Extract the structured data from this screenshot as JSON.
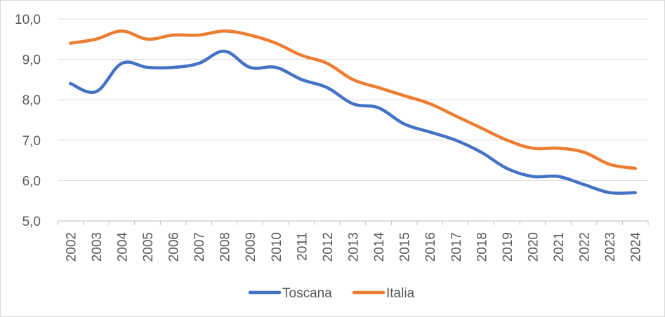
{
  "chart_data": {
    "type": "line",
    "title": "",
    "xlabel": "",
    "ylabel": "",
    "categories": [
      "2002",
      "2003",
      "2004",
      "2005",
      "2006",
      "2007",
      "2008",
      "2009",
      "2010",
      "2011",
      "2012",
      "2013",
      "2014",
      "2015",
      "2016",
      "2017",
      "2018",
      "2019",
      "2020",
      "2021",
      "2022",
      "2023",
      "2024"
    ],
    "y_ticks": [
      "5,0",
      "6,0",
      "7,0",
      "8,0",
      "9,0",
      "10,0"
    ],
    "ylim": [
      5,
      10
    ],
    "grid": "horizontal",
    "legend_position": "bottom",
    "series": [
      {
        "name": "Toscana",
        "color": "#4472c4",
        "values": [
          8.4,
          8.2,
          8.9,
          8.8,
          8.8,
          8.9,
          9.2,
          8.8,
          8.8,
          8.5,
          8.3,
          7.9,
          7.8,
          7.4,
          7.2,
          7.0,
          6.7,
          6.3,
          6.1,
          6.1,
          5.9,
          5.7,
          5.7
        ]
      },
      {
        "name": "Italia",
        "color": "#ed7d31",
        "values": [
          9.4,
          9.5,
          9.7,
          9.5,
          9.6,
          9.6,
          9.7,
          9.6,
          9.4,
          9.1,
          8.9,
          8.5,
          8.3,
          8.1,
          7.9,
          7.6,
          7.3,
          7.0,
          6.8,
          6.8,
          6.7,
          6.4,
          6.3
        ]
      }
    ]
  }
}
